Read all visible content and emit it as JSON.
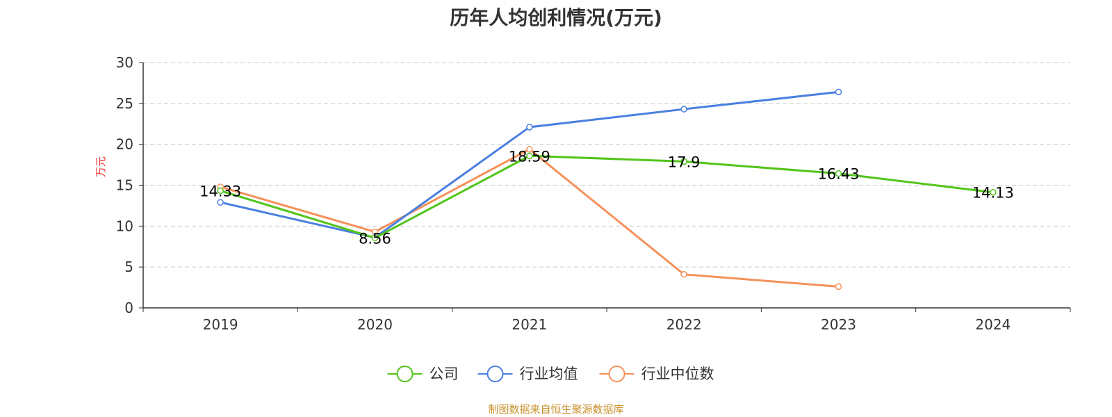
{
  "chart_data": {
    "type": "line",
    "title": "历年人均创利情况(万元)",
    "ylabel": "万元",
    "xlabel": "",
    "categories": [
      "2019",
      "2020",
      "2021",
      "2022",
      "2023",
      "2024"
    ],
    "ylim": [
      0,
      30
    ],
    "yticks": [
      0,
      5,
      10,
      15,
      20,
      25,
      30
    ],
    "grid": true,
    "legend_position": "bottom-center",
    "series": [
      {
        "name": "公司",
        "color": "#52c41a",
        "values": [
          14.33,
          8.56,
          18.59,
          17.9,
          16.43,
          14.13
        ],
        "labels": [
          "14.33",
          "8.56",
          "18.59",
          "17.9",
          "16.43",
          "14.13"
        ]
      },
      {
        "name": "行业均值",
        "color": "#4a7fe0",
        "values": [
          12.9,
          8.6,
          22.1,
          24.3,
          26.4,
          null
        ]
      },
      {
        "name": "行业中位数",
        "color": "#f5915a",
        "values": [
          14.8,
          9.3,
          19.4,
          4.1,
          2.6,
          null
        ]
      }
    ],
    "source": "制图数据来自恒生聚源数据库"
  }
}
